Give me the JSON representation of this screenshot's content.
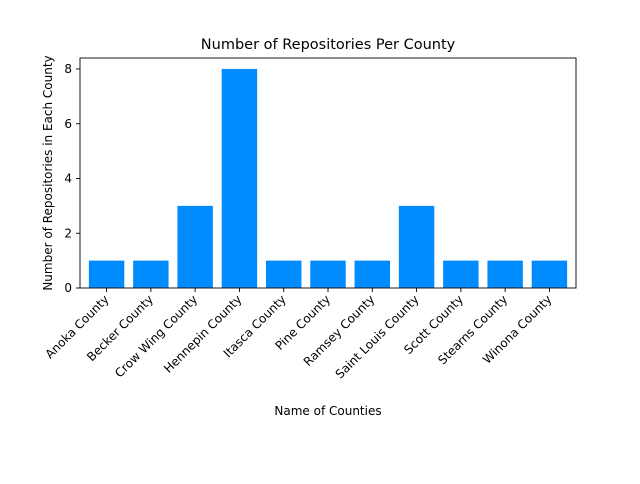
{
  "chart_data": {
    "type": "bar",
    "title": "Number of Repositories Per County",
    "xlabel": "Name of Counties",
    "ylabel": "Number of Repositories in Each County",
    "categories": [
      "Anoka County",
      "Becker County",
      "Crow Wing County",
      "Hennepin County",
      "Itasca County",
      "Pine County",
      "Ramsey County",
      "Saint Louis County",
      "Scott County",
      "Stearns County",
      "Winona County"
    ],
    "values": [
      1,
      1,
      3,
      8,
      1,
      1,
      1,
      3,
      1,
      1,
      1
    ],
    "ylim": [
      0,
      8.4
    ],
    "yticks": [
      "0",
      "2",
      "4",
      "6",
      "8"
    ],
    "grid": false,
    "bar_color": "#008cff",
    "x_tick_rotation": "45-degree"
  }
}
